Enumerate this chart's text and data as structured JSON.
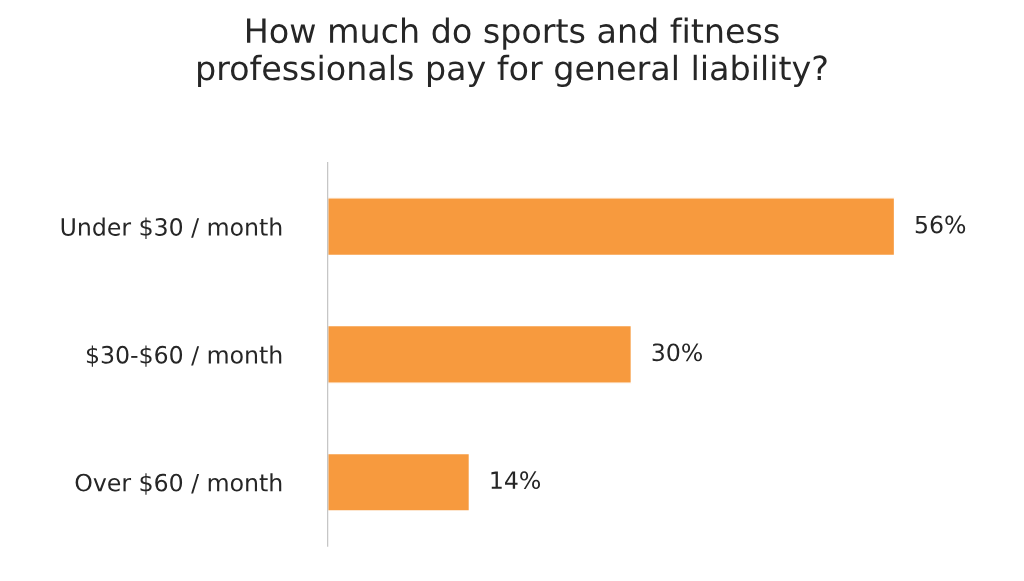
{
  "chart_data": {
    "type": "bar",
    "orientation": "horizontal",
    "title": "How much do sports and fitness\nprofessionals pay for general liability?",
    "categories": [
      "Under $30 / month",
      "$30-$60 / month",
      "Over $60 / month"
    ],
    "values": [
      56,
      30,
      14
    ],
    "value_labels": [
      "56%",
      "30%",
      "14%"
    ],
    "color": "#f79a3e",
    "tick_labels": "y",
    "grid": false,
    "legend": false
  }
}
